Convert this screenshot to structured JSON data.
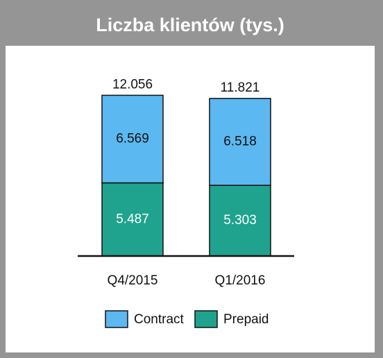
{
  "chart_data": {
    "type": "stacked_bar",
    "title": "Liczba klientów (tys.)",
    "categories": [
      "Q4/2015",
      "Q1/2016"
    ],
    "series": [
      {
        "name": "Prepaid",
        "color": "#1fa38e",
        "values": [
          5.487,
          5.303
        ]
      },
      {
        "name": "Contract",
        "color": "#5cb8f0",
        "values": [
          6.569,
          6.518
        ]
      }
    ],
    "totals": [
      12.056,
      11.821
    ],
    "ylim": [
      0,
      14
    ]
  }
}
